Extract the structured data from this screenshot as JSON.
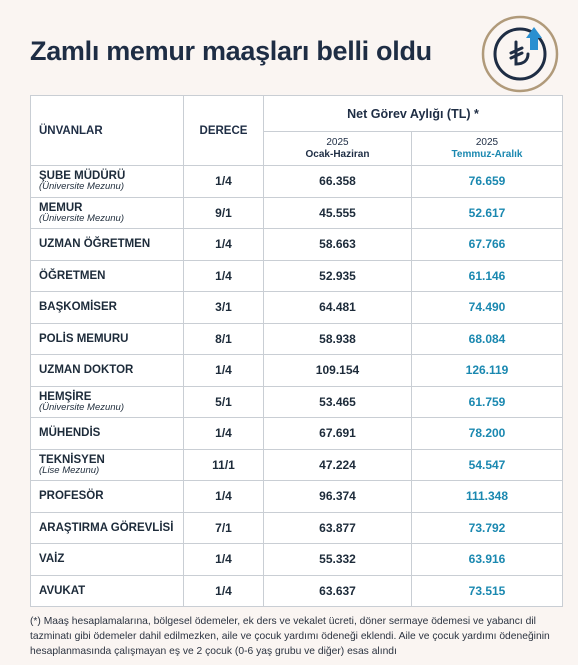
{
  "header": {
    "title": "Zamlı memur maaşları belli oldu"
  },
  "table": {
    "col_title": "ÜNVANLAR",
    "col_grade": "DERECE",
    "col_group": "Net Görev Aylığı (TL) *",
    "col_a_year": "2025",
    "col_a_period": "Ocak-Haziran",
    "col_b_year": "2025",
    "col_b_period": "Temmuz-Aralık",
    "rows": [
      {
        "title": "ŞUBE MÜDÜRÜ",
        "note": "(Üniversite Mezunu)",
        "grade": "1/4",
        "a": "66.358",
        "b": "76.659"
      },
      {
        "title": "MEMUR",
        "note": "(Üniversite Mezunu)",
        "grade": "9/1",
        "a": "45.555",
        "b": "52.617"
      },
      {
        "title": "UZMAN ÖĞRETMEN",
        "grade": "1/4",
        "a": "58.663",
        "b": "67.766"
      },
      {
        "title": "ÖĞRETMEN",
        "grade": "1/4",
        "a": "52.935",
        "b": "61.146"
      },
      {
        "title": "BAŞKOMİSER",
        "grade": "3/1",
        "a": "64.481",
        "b": "74.490"
      },
      {
        "title": "POLİS MEMURU",
        "grade": "8/1",
        "a": "58.938",
        "b": "68.084"
      },
      {
        "title": "UZMAN DOKTOR",
        "grade": "1/4",
        "a": "109.154",
        "b": "126.119"
      },
      {
        "title": "HEMŞİRE",
        "note": "(Üniversite Mezunu)",
        "grade": "5/1",
        "a": "53.465",
        "b": "61.759"
      },
      {
        "title": "MÜHENDİS",
        "grade": "1/4",
        "a": "67.691",
        "b": "78.200"
      },
      {
        "title": "TEKNİSYEN",
        "note": "(Lise Mezunu)",
        "grade": "11/1",
        "a": "47.224",
        "b": "54.547"
      },
      {
        "title": "PROFESÖR",
        "grade": "1/4",
        "a": "96.374",
        "b": "111.348"
      },
      {
        "title": "ARAŞTIRMA GÖREVLİSİ",
        "grade": "7/1",
        "a": "63.877",
        "b": "73.792"
      },
      {
        "title": "VAİZ",
        "grade": "1/4",
        "a": "55.332",
        "b": "63.916"
      },
      {
        "title": "AVUKAT",
        "grade": "1/4",
        "a": "63.637",
        "b": "73.515"
      }
    ]
  },
  "footnote": "(*) Maaş hesaplamalarına, bölgesel ödemeler, ek ders ve vekalet ücreti, döner sermaye ödemesi ve yabancı dil tazminatı gibi ödemeler dahil edilmezken, aile ve çocuk yardımı ödeneği eklendi. Aile ve çocuk yardımı ödeneğinin hesaplanmasında çalışmayan eş ve 2 çocuk (0-6 yaş grubu ve diğer) esas alındı"
}
